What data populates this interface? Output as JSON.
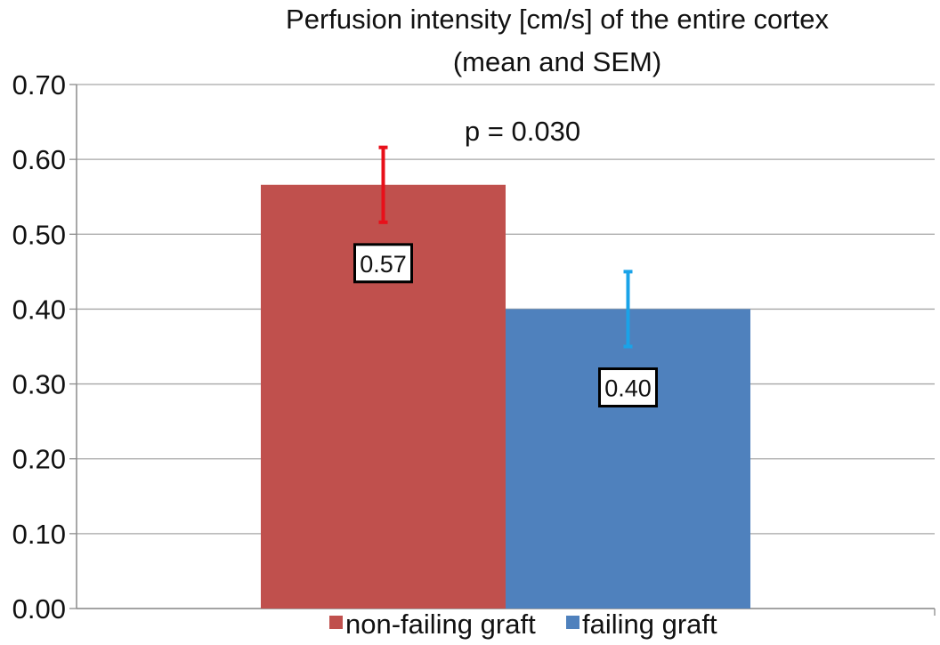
{
  "chart_data": {
    "type": "bar",
    "title_lines": [
      "Perfusion intensity [cm/s] of the entire cortex",
      "(mean and SEM)"
    ],
    "xlabel": "",
    "ylabel": "",
    "ylim": [
      0,
      0.7
    ],
    "yticks": [
      "0.00",
      "0.10",
      "0.20",
      "0.30",
      "0.40",
      "0.50",
      "0.60",
      "0.70"
    ],
    "ytick_values": [
      0,
      0.1,
      0.2,
      0.3,
      0.4,
      0.5,
      0.6,
      0.7
    ],
    "grid": true,
    "annotation": "p = 0.030",
    "legend_position": "bottom",
    "series": [
      {
        "name": "non-failing graft",
        "value": 0.566,
        "label": "0.57",
        "sem": 0.05,
        "color": "#c0504d",
        "error_color": "#e8101a"
      },
      {
        "name": "failing graft",
        "value": 0.4,
        "label": "0.40",
        "sem": 0.05,
        "color": "#4f81bd",
        "error_color": "#1aa3e8"
      }
    ]
  }
}
